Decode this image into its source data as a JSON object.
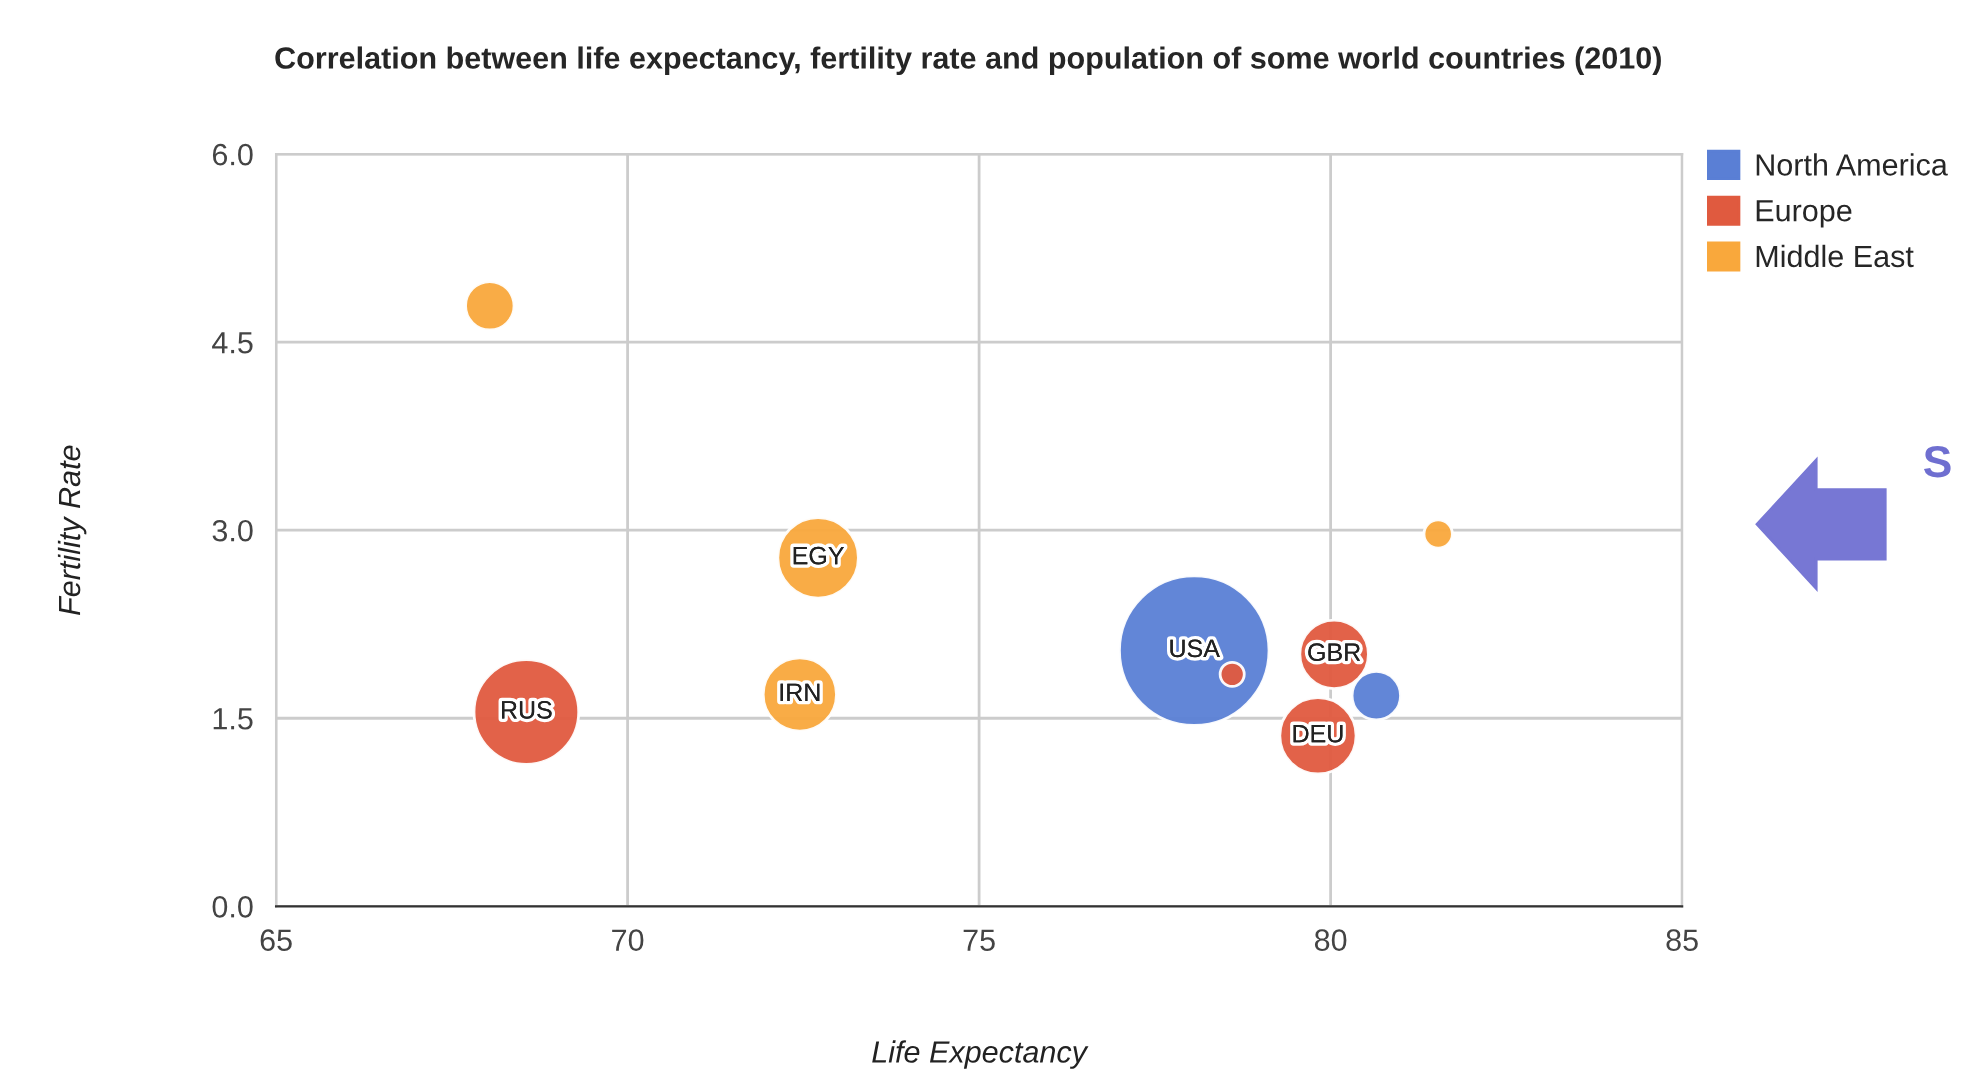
{
  "chart_data": {
    "type": "bubble",
    "title": "Correlation between life expectancy, fertility rate and population of some world countries (2010)",
    "xlabel": "Life Expectancy",
    "ylabel": "Fertility Rate",
    "series": [
      {
        "name": "North America",
        "color": "#5a7fd5",
        "x": [
          78.06,
          80.65
        ],
        "values": [
          2.04,
          1.68
        ],
        "sizes": [
          1,
          0.105
        ]
      },
      {
        "name": "Europe",
        "color": "#e05a3f",
        "x": [
          68.56,
          78.6,
          80.05,
          79.82
        ],
        "values": [
          1.55,
          1.85,
          2.01,
          1.36
        ],
        "sizes": [
          0.49,
          0.026,
          0.21,
          0.26
        ]
      },
      {
        "name": "Middle East",
        "color": "#f9a83c",
        "x": [
          68.04,
          72.71,
          72.45,
          81.53
        ],
        "values": [
          4.79,
          2.78,
          1.69,
          2.97
        ],
        "sizes": [
          0.105,
          0.29,
          0.24,
          0.036
        ]
      }
    ],
    "annotations": [
      {
        "text": "USA",
        "x": 78.06,
        "y": 2.04
      },
      {
        "text": "RUS",
        "x": 68.56,
        "y": 1.55
      },
      {
        "text": "GBR",
        "x": 80.05,
        "y": 2.01
      },
      {
        "text": "DEU",
        "x": 79.82,
        "y": 1.36
      },
      {
        "text": "EGY",
        "x": 72.71,
        "y": 2.78
      },
      {
        "text": "IRN",
        "x": 72.45,
        "y": 1.69
      },
      "S"
    ],
    "xlim": [
      65,
      85
    ],
    "xticks": [
      65,
      70,
      75,
      80,
      85
    ],
    "ylim": [
      0,
      6
    ],
    "yticks": [
      {
        "value": 0,
        "label": "0.0"
      },
      1.5,
      {
        "value": 3,
        "label": "3.0"
      },
      4.5,
      {
        "value": 6,
        "label": "6.0"
      }
    ],
    "grid": true,
    "legend": "right",
    "marker": "circle"
  }
}
